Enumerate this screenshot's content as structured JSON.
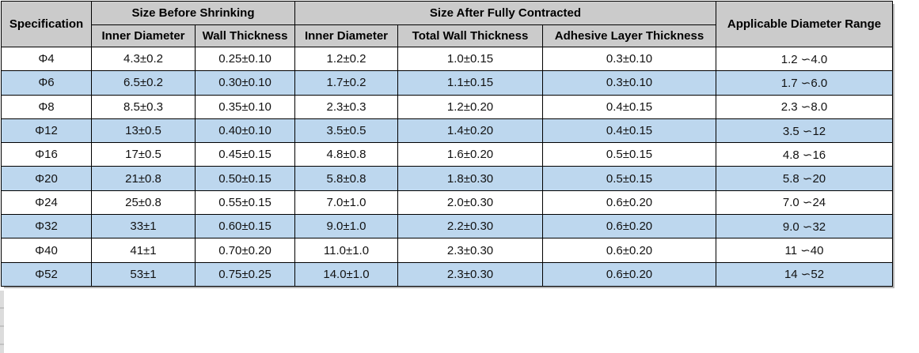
{
  "colors": {
    "header_bg": "#cbcbcb",
    "alt_row_bg": "#bdd7ee",
    "row_bg": "#ffffff",
    "border": "#000000",
    "shadow": "#b3b3b3"
  },
  "table": {
    "header": {
      "specification": "Specification",
      "size_before": "Size Before Shrinking",
      "size_after": "Size After Fully Contracted",
      "applicable_range": "Applicable Diameter Range",
      "before_cols": [
        "Inner Diameter",
        "Wall Thickness"
      ],
      "after_cols": [
        "Inner Diameter",
        "Total Wall Thickness",
        "Adhesive Layer Thickness"
      ]
    },
    "rows": [
      [
        "Φ4",
        "4.3±0.2",
        "0.25±0.10",
        "1.2±0.2",
        "1.0±0.15",
        "0.3±0.10",
        "1.2 ∽4.0"
      ],
      [
        "Φ6",
        "6.5±0.2",
        "0.30±0.10",
        "1.7±0.2",
        "1.1±0.15",
        "0.3±0.10",
        "1.7 ∽6.0"
      ],
      [
        "Φ8",
        "8.5±0.3",
        "0.35±0.10",
        "2.3±0.3",
        "1.2±0.20",
        "0.4±0.15",
        "2.3 ∽8.0"
      ],
      [
        "Φ12",
        "13±0.5",
        "0.40±0.10",
        "3.5±0.5",
        "1.4±0.20",
        "0.4±0.15",
        "3.5 ∽12"
      ],
      [
        "Φ16",
        "17±0.5",
        "0.45±0.15",
        "4.8±0.8",
        "1.6±0.20",
        "0.5±0.15",
        "4.8 ∽16"
      ],
      [
        "Φ20",
        "21±0.8",
        "0.50±0.15",
        "5.8±0.8",
        "1.8±0.30",
        "0.5±0.15",
        "5.8 ∽20"
      ],
      [
        "Φ24",
        "25±0.8",
        "0.55±0.15",
        "7.0±1.0",
        "2.0±0.30",
        "0.6±0.20",
        "7.0 ∽24"
      ],
      [
        "Φ32",
        "33±1",
        "0.60±0.15",
        "9.0±1.0",
        "2.2±0.30",
        "0.6±0.20",
        "9.0 ∽32"
      ],
      [
        "Φ40",
        "41±1",
        "0.70±0.20",
        "11.0±1.0",
        "2.3±0.30",
        "0.6±0.20",
        "11 ∽40"
      ],
      [
        "Φ52",
        "53±1",
        "0.75±0.25",
        "14.0±1.0",
        "2.3±0.30",
        "0.6±0.20",
        "14 ∽52"
      ]
    ]
  }
}
